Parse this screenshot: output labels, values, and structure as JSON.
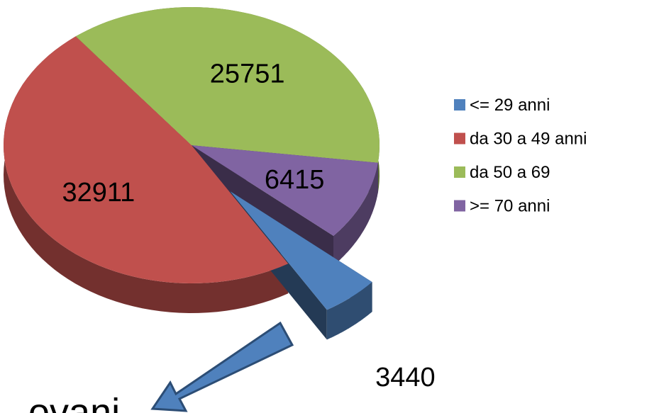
{
  "chart_data": {
    "type": "pie",
    "categories": [
      "<= 29 anni",
      "da 30 a 49 anni",
      "da 50 a 69",
      ">= 70 anni"
    ],
    "values": [
      3440,
      32911,
      25751,
      6415
    ],
    "colors": [
      "#4f81bd",
      "#c0504d",
      "#9bbb59",
      "#8064a2"
    ],
    "exploded": [
      true,
      false,
      false,
      false
    ],
    "legend": "right",
    "annotations": [
      "ovani"
    ]
  }
}
